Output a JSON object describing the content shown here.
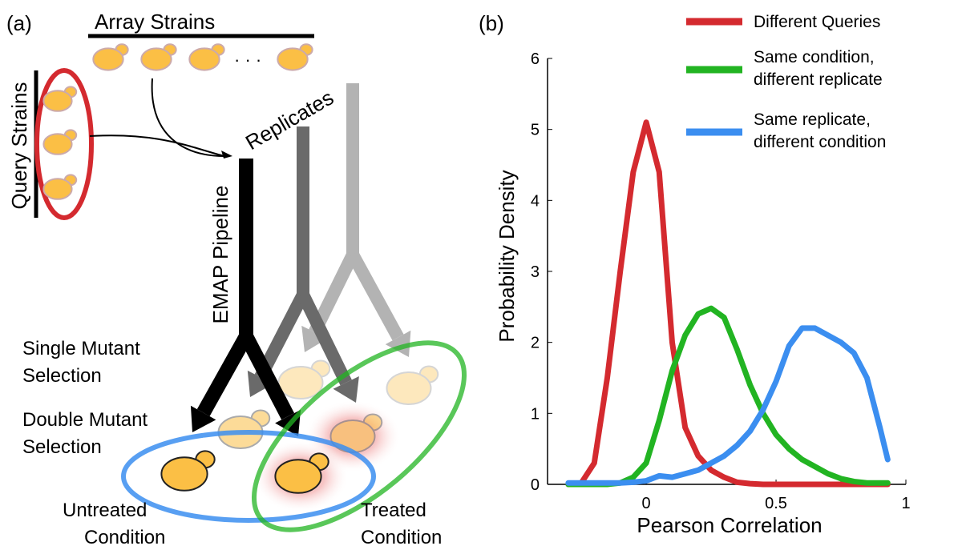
{
  "panel_a": {
    "label": "(a)",
    "array_strains": "Array Strains",
    "ellipsis": "· · ·",
    "query_strains": "Query Strains",
    "replicates": "Replicates",
    "emap_pipeline": "EMAP Pipeline",
    "single_mutant_selection": [
      "Single Mutant",
      "Selection"
    ],
    "double_mutant_selection": [
      "Double Mutant",
      "Selection"
    ],
    "untreated_condition": [
      "Untreated",
      "Condition"
    ],
    "treated_condition": [
      "Treated",
      "Condition"
    ]
  },
  "chart_data": {
    "type": "line",
    "panel_label": "(b)",
    "x_label": "Pearson Correlation",
    "y_label": "Probability Density",
    "x": [
      -0.3,
      -0.25,
      -0.2,
      -0.15,
      -0.1,
      -0.05,
      0,
      0.05,
      0.1,
      0.15,
      0.2,
      0.25,
      0.3,
      0.35,
      0.4,
      0.45,
      0.5,
      0.55,
      0.6,
      0.65,
      0.7,
      0.75,
      0.8,
      0.85,
      0.9,
      0.93
    ],
    "series": [
      {
        "name": "Different Queries",
        "color": "#d42a2f",
        "values": [
          0,
          0.02,
          0.3,
          1.5,
          3.0,
          4.4,
          5.1,
          4.4,
          2.0,
          0.8,
          0.4,
          0.2,
          0.1,
          0.03,
          0.01,
          0,
          0,
          0,
          0,
          0,
          0,
          0,
          0,
          0,
          0,
          0
        ]
      },
      {
        "name": "Same condition, different replicate",
        "color": "#22b422",
        "values": [
          0,
          0,
          0,
          0,
          0.02,
          0.1,
          0.3,
          0.9,
          1.6,
          2.1,
          2.4,
          2.48,
          2.35,
          1.9,
          1.4,
          1.0,
          0.7,
          0.5,
          0.35,
          0.25,
          0.15,
          0.08,
          0.04,
          0.02,
          0.02,
          0.02
        ]
      },
      {
        "name": "Same replicate, different condition",
        "color": "#3b8ef0",
        "values": [
          0.02,
          0.02,
          0.02,
          0.02,
          0.02,
          0.03,
          0.05,
          0.12,
          0.1,
          0.15,
          0.2,
          0.3,
          0.4,
          0.55,
          0.75,
          1.05,
          1.45,
          1.95,
          2.2,
          2.2,
          2.1,
          2.0,
          1.85,
          1.5,
          0.8,
          0.35
        ]
      }
    ],
    "xlim": [
      -0.38,
      1
    ],
    "ylim": [
      0,
      6
    ],
    "xticks": [
      0,
      0.5,
      1
    ],
    "yticks": [
      0,
      1,
      2,
      3,
      4,
      5,
      6
    ],
    "grid": false,
    "legend": "top-right"
  }
}
